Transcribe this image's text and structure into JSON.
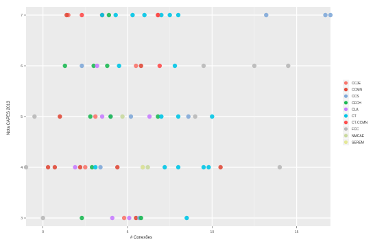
{
  "chart_data": {
    "type": "scatter",
    "xlabel": "# Conexões",
    "ylabel": "Nota CAPES 2013",
    "xlim": [
      -1,
      17
    ],
    "x_ticks": [
      0,
      5,
      10,
      15
    ],
    "y_categories": [
      "3",
      "4",
      "5",
      "6",
      "7"
    ],
    "grid": true,
    "legend_position": "right",
    "series": [
      {
        "name": "CCJE",
        "color": "#F8766D",
        "points": [
          [
            1.5,
            "7"
          ],
          [
            5.5,
            "6"
          ],
          [
            3.1,
            "5"
          ],
          [
            2.5,
            "4"
          ],
          [
            4.8,
            "3"
          ]
        ]
      },
      {
        "name": "CCMN",
        "color": "#E04A3A",
        "points": [
          [
            1.4,
            "7"
          ],
          [
            3.5,
            "7"
          ],
          [
            6.8,
            "7"
          ],
          [
            5.8,
            "6"
          ],
          [
            1.0,
            "5"
          ],
          [
            0.3,
            "4"
          ],
          [
            0.7,
            "4"
          ],
          [
            2.2,
            "4"
          ],
          [
            4.4,
            "4"
          ],
          [
            10.5,
            "4"
          ],
          [
            5.5,
            "3"
          ]
        ]
      },
      {
        "name": "CCS",
        "color": "#7FA9D8",
        "points": [
          [
            13.2,
            "7"
          ],
          [
            16.7,
            "7"
          ],
          [
            17.0,
            "7"
          ],
          [
            2.3,
            "6"
          ],
          [
            4.0,
            "5"
          ],
          [
            5.2,
            "5"
          ],
          [
            8.6,
            "5"
          ],
          [
            3.4,
            "4"
          ],
          [
            5.9,
            "4"
          ],
          [
            5.7,
            "3"
          ]
        ]
      },
      {
        "name": "CFCH",
        "color": "#1DB954",
        "points": [
          [
            3.9,
            "7"
          ],
          [
            3.8,
            "6"
          ],
          [
            1.3,
            "6"
          ],
          [
            3.0,
            "6"
          ],
          [
            4.0,
            "5"
          ],
          [
            2.8,
            "5"
          ],
          [
            6.8,
            "5"
          ],
          [
            2.9,
            "4"
          ],
          [
            2.3,
            "3"
          ],
          [
            5.8,
            "3"
          ]
        ]
      },
      {
        "name": "CLA",
        "color": "#C77CFF",
        "points": [
          [
            3.2,
            "6"
          ],
          [
            3.5,
            "5"
          ],
          [
            6.3,
            "5"
          ],
          [
            1.9,
            "4"
          ],
          [
            4.1,
            "3"
          ],
          [
            5.1,
            "3"
          ]
        ]
      },
      {
        "name": "CT",
        "color": "#00C5E6",
        "points": [
          [
            3.5,
            "7"
          ],
          [
            4.3,
            "7"
          ],
          [
            5.3,
            "7"
          ],
          [
            6.0,
            "7"
          ],
          [
            7.0,
            "7"
          ],
          [
            7.5,
            "7"
          ],
          [
            8.0,
            "7"
          ],
          [
            4.5,
            "6"
          ],
          [
            7.8,
            "6"
          ],
          [
            7.0,
            "5"
          ],
          [
            8.0,
            "5"
          ],
          [
            10.0,
            "5"
          ],
          [
            9.5,
            "4"
          ],
          [
            9.8,
            "4"
          ],
          [
            3.1,
            "4"
          ],
          [
            7.2,
            "4"
          ],
          [
            8.0,
            "4"
          ],
          [
            8.5,
            "3"
          ]
        ]
      },
      {
        "name": "CT-CCMN",
        "color": "#FF4D4D",
        "points": [
          [
            2.3,
            "7"
          ],
          [
            6.8,
            "7"
          ],
          [
            6.9,
            "6"
          ]
        ]
      },
      {
        "name": "FCC",
        "color": "#B8B8B8",
        "points": [
          [
            9.5,
            "6"
          ],
          [
            12.5,
            "6"
          ],
          [
            14.5,
            "6"
          ],
          [
            -0.5,
            "5"
          ],
          [
            9.0,
            "5"
          ],
          [
            -1.0,
            "4"
          ],
          [
            14.0,
            "4"
          ],
          [
            0.0,
            "3"
          ]
        ]
      },
      {
        "name": "NMCAE",
        "color": "#C9D99E",
        "points": [
          [
            4.7,
            "5"
          ],
          [
            6.2,
            "4"
          ]
        ]
      },
      {
        "name": "SEREM",
        "color": "#E4E895",
        "points": [
          [
            5.9,
            "4"
          ]
        ]
      }
    ]
  }
}
